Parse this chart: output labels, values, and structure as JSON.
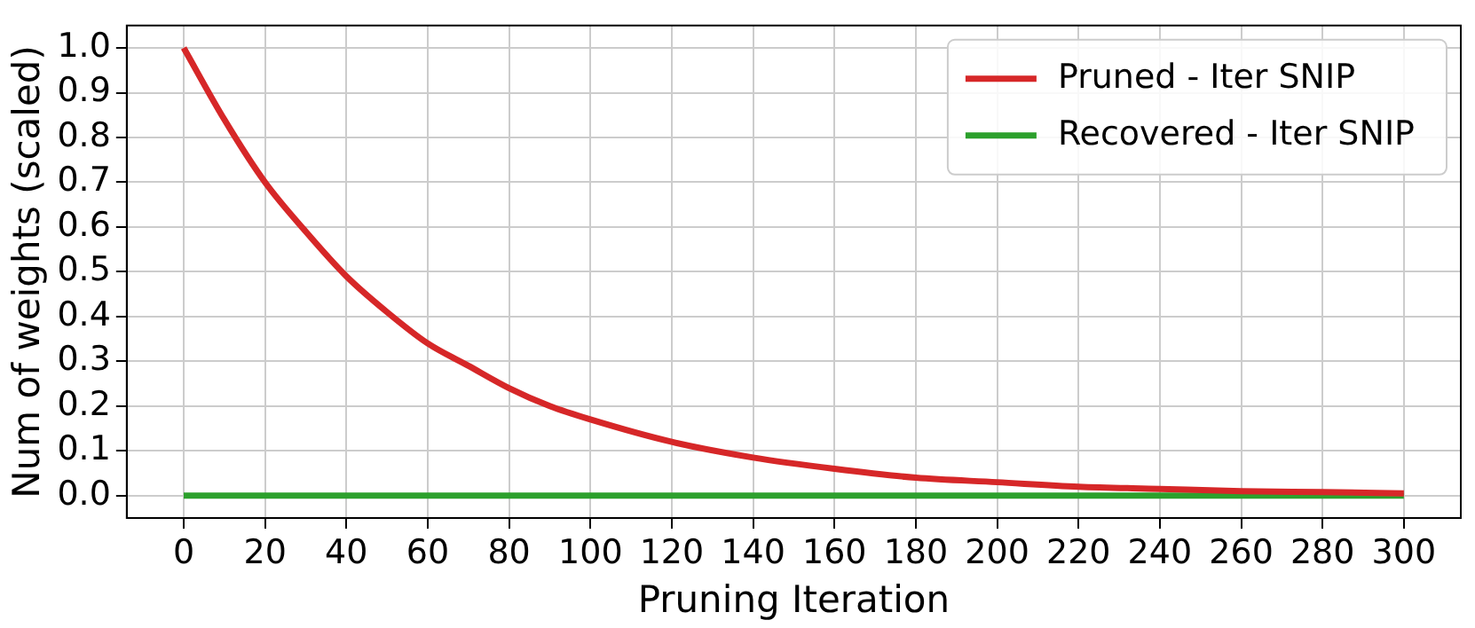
{
  "chart_data": {
    "type": "line",
    "xlabel": "Pruning Iteration",
    "ylabel": "Num of weights (scaled)",
    "x": [
      0,
      10,
      20,
      30,
      40,
      50,
      60,
      70,
      80,
      90,
      100,
      120,
      140,
      160,
      180,
      200,
      220,
      240,
      260,
      280,
      300
    ],
    "series": [
      {
        "name": "Pruned - Iter SNIP",
        "color": "#d62728",
        "values": [
          1.0,
          0.84,
          0.7,
          0.59,
          0.49,
          0.41,
          0.34,
          0.29,
          0.24,
          0.2,
          0.17,
          0.12,
          0.085,
          0.06,
          0.04,
          0.03,
          0.02,
          0.015,
          0.01,
          0.008,
          0.005
        ]
      },
      {
        "name": "Recovered - Iter SNIP",
        "color": "#2ca02c",
        "values": [
          0,
          0,
          0,
          0,
          0,
          0,
          0,
          0,
          0,
          0,
          0,
          0,
          0,
          0,
          0,
          0,
          0,
          0,
          0,
          0,
          0
        ]
      }
    ],
    "xlim": [
      -14,
      314
    ],
    "xticks": [
      0,
      20,
      40,
      60,
      80,
      100,
      120,
      140,
      160,
      180,
      200,
      220,
      240,
      260,
      280,
      300
    ],
    "ylim": [
      -0.05,
      1.05
    ],
    "yticks": [
      {
        "value": 0,
        "label": "0.0"
      },
      0.1,
      0.2,
      0.3,
      0.4,
      0.5,
      0.6,
      0.7,
      0.8,
      0.9,
      {
        "value": 1,
        "label": "1.0"
      }
    ],
    "grid": true,
    "legend": "top right",
    "marker": "none",
    "line_style": "solid"
  }
}
